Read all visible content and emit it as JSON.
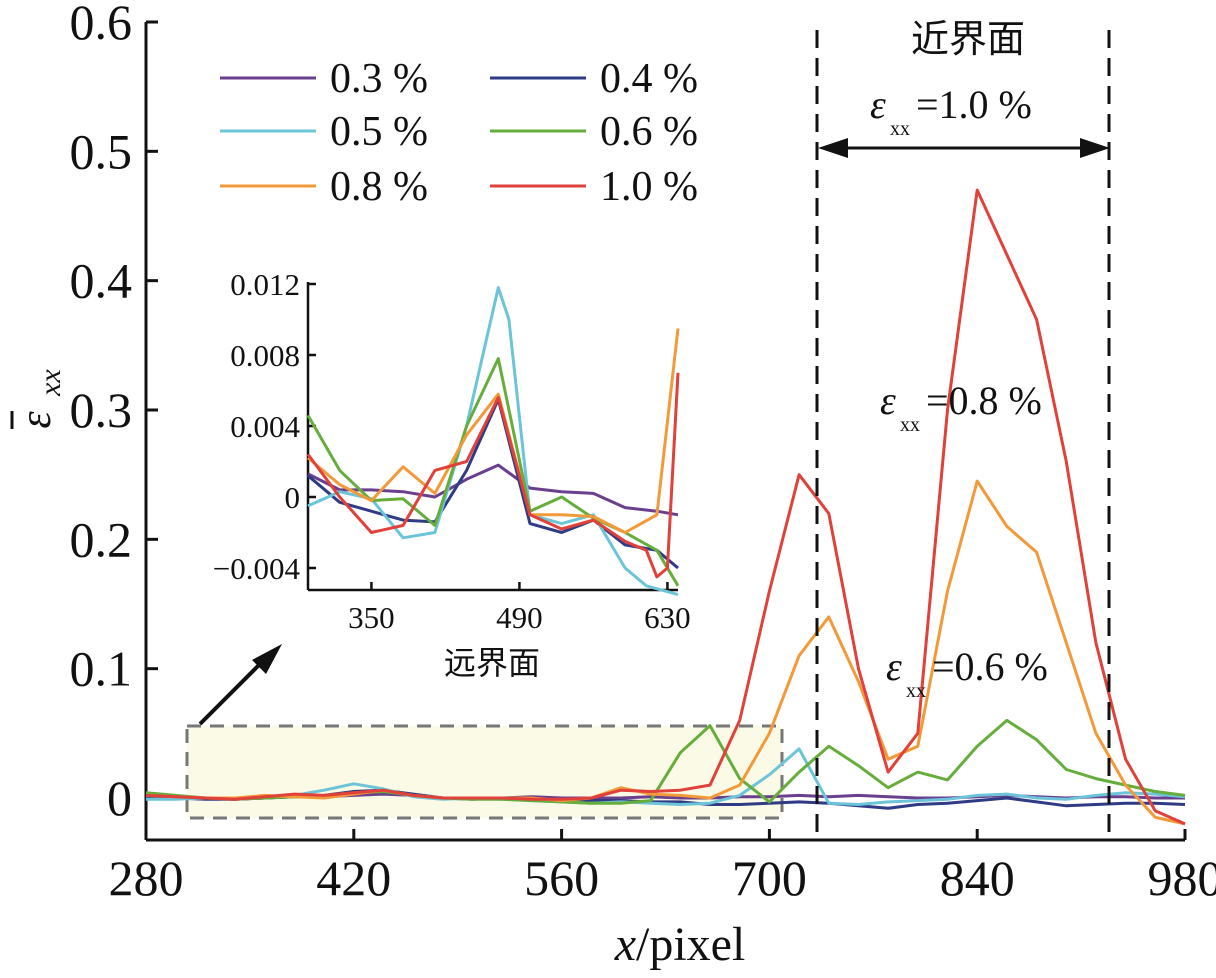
{
  "chart_data": [
    {
      "type": "line",
      "xlabel": "x/pixel",
      "ylabel": "ε̄xx",
      "xlim": [
        280,
        980
      ],
      "ylim": [
        -0.02,
        0.6
      ],
      "xticks": [
        "280",
        "420",
        "560",
        "700",
        "840",
        "980"
      ],
      "yticks": [
        "0",
        "0.1",
        "0.2",
        "0.3",
        "0.4",
        "0.5",
        "0.6"
      ],
      "legend_position": "top-left",
      "series": [
        {
          "name": "0.3 %",
          "color": "#6a3f8e",
          "x": [
            280,
            300,
            320,
            340,
            360,
            380,
            400,
            420,
            440,
            460,
            480,
            500,
            520,
            540,
            560,
            580,
            600,
            620,
            640,
            660,
            680,
            700,
            720,
            740,
            760,
            780,
            800,
            820,
            840,
            860,
            880,
            900,
            920,
            940,
            960,
            980
          ],
          "y": [
            0.002,
            0.001,
            0.0,
            -0.001,
            0.0,
            0.001,
            0.001,
            0.002,
            0.003,
            0.002,
            0.0,
            0.0,
            0.0,
            0.001,
            0.0,
            0.0,
            0.0,
            0.001,
            0.0,
            0.0,
            0.001,
            0.001,
            0.002,
            0.001,
            0.002,
            0.001,
            0.0,
            0.0,
            0.001,
            0.002,
            0.001,
            0.0,
            0.001,
            0.001,
            0.0,
            0.0
          ]
        },
        {
          "name": "0.4 %",
          "color": "#2f3b85",
          "x": [
            280,
            300,
            320,
            340,
            360,
            380,
            400,
            420,
            440,
            460,
            480,
            500,
            520,
            540,
            560,
            580,
            600,
            620,
            640,
            660,
            680,
            700,
            720,
            740,
            760,
            780,
            800,
            820,
            840,
            860,
            880,
            900,
            920,
            940,
            960,
            980
          ],
          "y": [
            0.001,
            0.0,
            -0.001,
            -0.001,
            0.0,
            0.001,
            0.002,
            0.005,
            0.006,
            0.003,
            0.0,
            -0.001,
            0.0,
            -0.001,
            -0.002,
            -0.002,
            -0.002,
            -0.003,
            -0.003,
            -0.005,
            -0.005,
            -0.004,
            -0.003,
            -0.004,
            -0.006,
            -0.008,
            -0.005,
            -0.004,
            -0.002,
            0.0,
            -0.003,
            -0.006,
            -0.005,
            -0.004,
            -0.004,
            -0.005
          ]
        },
        {
          "name": "0.5 %",
          "color": "#6cc4d8",
          "x": [
            280,
            300,
            320,
            340,
            360,
            380,
            400,
            420,
            440,
            460,
            480,
            500,
            520,
            540,
            560,
            580,
            600,
            620,
            640,
            660,
            680,
            700,
            720,
            740,
            760,
            780,
            800,
            820,
            840,
            860,
            880,
            900,
            920,
            940,
            960,
            980
          ],
          "y": [
            -0.001,
            -0.001,
            0.0,
            0.0,
            0.0,
            0.002,
            0.006,
            0.011,
            0.007,
            0.001,
            -0.001,
            0.0,
            -0.001,
            -0.002,
            -0.003,
            -0.004,
            -0.003,
            -0.004,
            -0.005,
            -0.004,
            0.002,
            0.018,
            0.038,
            -0.004,
            -0.005,
            -0.003,
            -0.002,
            -0.001,
            0.002,
            0.003,
            0.0,
            -0.001,
            0.002,
            0.004,
            0.003,
            0.001
          ]
        },
        {
          "name": "0.6 %",
          "color": "#66ad3c",
          "x": [
            280,
            300,
            320,
            340,
            360,
            380,
            400,
            420,
            440,
            460,
            480,
            500,
            520,
            540,
            560,
            580,
            600,
            620,
            640,
            660,
            680,
            700,
            720,
            740,
            760,
            780,
            800,
            820,
            840,
            860,
            880,
            900,
            920,
            940,
            960,
            980
          ],
          "y": [
            0.004,
            0.002,
            0.0,
            -0.001,
            0.0,
            0.001,
            0.002,
            0.004,
            0.005,
            0.002,
            0.0,
            -0.001,
            -0.001,
            -0.002,
            -0.003,
            -0.004,
            -0.004,
            -0.002,
            0.035,
            0.056,
            0.015,
            -0.003,
            0.02,
            0.04,
            0.025,
            0.008,
            0.02,
            0.014,
            0.04,
            0.06,
            0.045,
            0.022,
            0.015,
            0.01,
            0.005,
            0.002
          ]
        },
        {
          "name": "0.8 %",
          "color": "#f29a3a",
          "x": [
            280,
            300,
            320,
            340,
            360,
            380,
            400,
            420,
            440,
            460,
            480,
            500,
            520,
            540,
            560,
            580,
            600,
            620,
            640,
            660,
            680,
            700,
            720,
            740,
            760,
            780,
            800,
            820,
            840,
            860,
            880,
            900,
            920,
            940,
            960,
            980
          ],
          "y": [
            0.002,
            0.001,
            0.0,
            0.0,
            0.002,
            0.001,
            0.0,
            0.003,
            0.006,
            0.002,
            0.0,
            0.0,
            0.0,
            0.0,
            -0.002,
            0.0,
            0.008,
            0.003,
            0.002,
            0.0,
            0.01,
            0.05,
            0.11,
            0.14,
            0.09,
            0.03,
            0.04,
            0.16,
            0.245,
            0.21,
            0.19,
            0.12,
            0.05,
            0.01,
            -0.015,
            -0.02
          ]
        },
        {
          "name": "1.0 %",
          "color": "#e0413a",
          "x": [
            280,
            300,
            320,
            340,
            360,
            380,
            400,
            420,
            440,
            460,
            480,
            500,
            520,
            540,
            560,
            580,
            600,
            620,
            640,
            660,
            680,
            700,
            720,
            740,
            760,
            780,
            800,
            820,
            840,
            860,
            880,
            900,
            920,
            940,
            960,
            980
          ],
          "y": [
            0.002,
            0.001,
            0.0,
            -0.001,
            0.001,
            0.003,
            0.002,
            0.004,
            0.006,
            0.002,
            0.0,
            0.0,
            0.0,
            -0.001,
            -0.001,
            0.0,
            0.006,
            0.005,
            0.006,
            0.01,
            0.06,
            0.16,
            0.25,
            0.22,
            0.1,
            0.02,
            0.05,
            0.3,
            0.47,
            0.42,
            0.37,
            0.26,
            0.12,
            0.03,
            -0.01,
            -0.02
          ]
        }
      ]
    },
    {
      "type": "line",
      "xlabel": "远界面",
      "xlim": [
        290,
        640
      ],
      "ylim": [
        -0.005,
        0.012
      ],
      "xticks": [
        "350",
        "490",
        "630"
      ],
      "yticks": [
        "0.012",
        "0.008",
        "0.004",
        "0",
        "−0.004"
      ],
      "series": [
        {
          "color": "#6a3f8e",
          "x": [
            290,
            320,
            350,
            380,
            410,
            440,
            470,
            500,
            530,
            560,
            590,
            620,
            640
          ],
          "y": [
            0.0013,
            0.0004,
            0.0004,
            0.0003,
            0.0,
            0.001,
            0.0018,
            0.0005,
            0.0003,
            0.0002,
            -0.0006,
            -0.0008,
            -0.001
          ]
        },
        {
          "color": "#2f3b85",
          "x": [
            290,
            320,
            350,
            380,
            410,
            440,
            470,
            500,
            530,
            560,
            590,
            620,
            640
          ],
          "y": [
            0.0012,
            -0.0003,
            -0.0008,
            -0.0013,
            -0.0014,
            0.0015,
            0.0055,
            -0.0015,
            -0.002,
            -0.0013,
            -0.0027,
            -0.003,
            -0.004
          ]
        },
        {
          "color": "#6cc4d8",
          "x": [
            290,
            320,
            350,
            380,
            410,
            440,
            470,
            480,
            500,
            530,
            560,
            590,
            610,
            640
          ],
          "y": [
            -0.0005,
            0.0003,
            -0.0001,
            -0.0023,
            -0.002,
            0.004,
            0.0118,
            0.01,
            -0.001,
            -0.0015,
            -0.001,
            -0.004,
            -0.005,
            -0.0055
          ]
        },
        {
          "color": "#66ad3c",
          "x": [
            290,
            320,
            350,
            380,
            410,
            440,
            470,
            500,
            530,
            560,
            590,
            620,
            640
          ],
          "y": [
            0.0046,
            0.0015,
            -0.0002,
            -0.0001,
            -0.0016,
            0.004,
            0.0078,
            -0.0008,
            0.0,
            -0.0012,
            -0.002,
            -0.003,
            -0.005
          ]
        },
        {
          "color": "#f29a3a",
          "x": [
            290,
            320,
            350,
            380,
            410,
            440,
            470,
            500,
            530,
            560,
            590,
            620,
            640
          ],
          "y": [
            0.0022,
            0.0007,
            -0.0002,
            0.0017,
            0.0002,
            0.0035,
            0.0058,
            -0.001,
            -0.001,
            -0.0011,
            -0.002,
            -0.001,
            0.0095
          ]
        },
        {
          "color": "#e0413a",
          "x": [
            290,
            320,
            350,
            380,
            410,
            440,
            470,
            500,
            530,
            560,
            590,
            610,
            620,
            630,
            640
          ],
          "y": [
            0.0024,
            0.0,
            -0.002,
            -0.0016,
            0.0015,
            0.002,
            0.0056,
            -0.001,
            -0.0018,
            -0.0013,
            -0.0025,
            -0.003,
            -0.0045,
            -0.004,
            0.007
          ]
        }
      ]
    }
  ],
  "annotations": {
    "near_interface": "近界面",
    "exx_10": "=1.0 %",
    "exx_08": "=0.8 %",
    "exx_06": "=0.6 %",
    "epsilon": "ε",
    "sub_xx": "xx"
  },
  "colors": {
    "highlight_box": "#fbfae6",
    "axis": "#111111",
    "dashed": "#777777"
  }
}
